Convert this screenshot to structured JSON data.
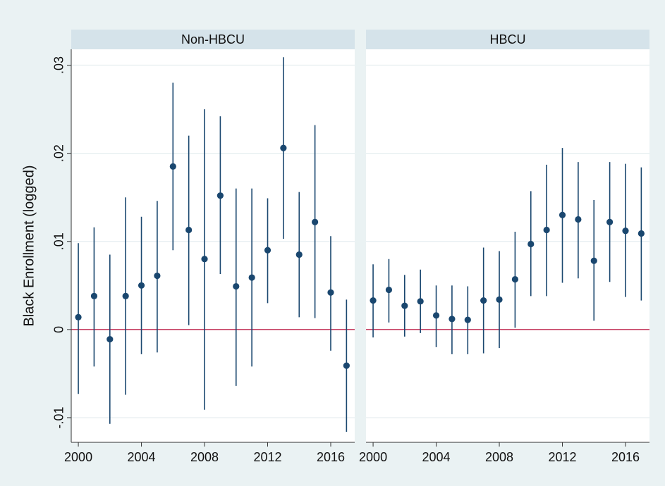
{
  "chart_data": [
    {
      "type": "errorbar",
      "title": "Non-HBCU",
      "ylabel": "Black Enrollment (logged)",
      "x": [
        2000,
        2001,
        2002,
        2003,
        2004,
        2005,
        2006,
        2007,
        2008,
        2009,
        2010,
        2011,
        2012,
        2013,
        2014,
        2015,
        2016,
        2017
      ],
      "values": [
        0.0014,
        0.0038,
        -0.0011,
        0.0038,
        0.005,
        0.0061,
        0.0185,
        0.0113,
        0.008,
        0.0152,
        0.0049,
        0.0059,
        0.009,
        0.0206,
        0.0085,
        0.0122,
        0.0042,
        -0.0041
      ],
      "lower": [
        -0.0073,
        -0.0042,
        -0.0107,
        -0.0074,
        -0.0028,
        -0.0026,
        0.009,
        0.0005,
        -0.0091,
        0.0063,
        -0.0064,
        -0.0042,
        0.003,
        0.0103,
        0.0014,
        0.0013,
        -0.0024,
        -0.0116
      ],
      "upper": [
        0.0098,
        0.0116,
        0.0085,
        0.015,
        0.0128,
        0.0146,
        0.028,
        0.022,
        0.025,
        0.0242,
        0.016,
        0.016,
        0.0149,
        0.0309,
        0.0156,
        0.0232,
        0.0106,
        0.0034
      ],
      "color": "#1a476f",
      "yline": 0,
      "yline_color": "#c0284f",
      "xlim": [
        1999.55,
        2017.52
      ],
      "xticks": [
        2000,
        2004,
        2008,
        2012,
        2016
      ],
      "ylim": [
        -0.0128,
        0.0318
      ],
      "yticks": [
        {
          "value": -0.01,
          "label": "-.01"
        },
        0,
        {
          "value": 0.01,
          "label": ".01"
        },
        {
          "value": 0.02,
          "label": ".02"
        },
        {
          "value": 0.03,
          "label": ".03"
        }
      ],
      "grid": true
    },
    {
      "type": "errorbar",
      "title": "HBCU",
      "x": [
        2000,
        2001,
        2002,
        2003,
        2004,
        2005,
        2006,
        2007,
        2008,
        2009,
        2010,
        2011,
        2012,
        2013,
        2014,
        2015,
        2016,
        2017
      ],
      "values": [
        0.0033,
        0.0045,
        0.0027,
        0.0032,
        0.0016,
        0.0012,
        0.0011,
        0.0033,
        0.0034,
        0.0057,
        0.0097,
        0.0113,
        0.013,
        0.0125,
        0.0078,
        0.0122,
        0.0112,
        0.0109
      ],
      "lower": [
        -0.0009,
        0.0008,
        -0.0008,
        -0.0004,
        -0.002,
        -0.0028,
        -0.0028,
        -0.0027,
        -0.0021,
        0.0002,
        0.0038,
        0.0038,
        0.0053,
        0.0058,
        0.001,
        0.0054,
        0.0037,
        0.0033
      ],
      "upper": [
        0.0074,
        0.008,
        0.0062,
        0.0068,
        0.005,
        0.005,
        0.0049,
        0.0093,
        0.0089,
        0.0111,
        0.0157,
        0.0187,
        0.0206,
        0.019,
        0.0147,
        0.019,
        0.0188,
        0.0184
      ],
      "color": "#1a476f",
      "yline": 0,
      "yline_color": "#c0284f",
      "xlim": [
        1999.55,
        2017.52
      ],
      "xticks": [
        2000,
        2004,
        2008,
        2012,
        2016
      ],
      "ylim": [
        -0.0128,
        0.0318
      ],
      "yticks": [
        {
          "value": -0.01,
          "label": "-.01"
        },
        0,
        {
          "value": 0.01,
          "label": ".01"
        },
        {
          "value": 0.02,
          "label": ".02"
        },
        {
          "value": 0.03,
          "label": ".03"
        }
      ],
      "grid": true
    }
  ]
}
